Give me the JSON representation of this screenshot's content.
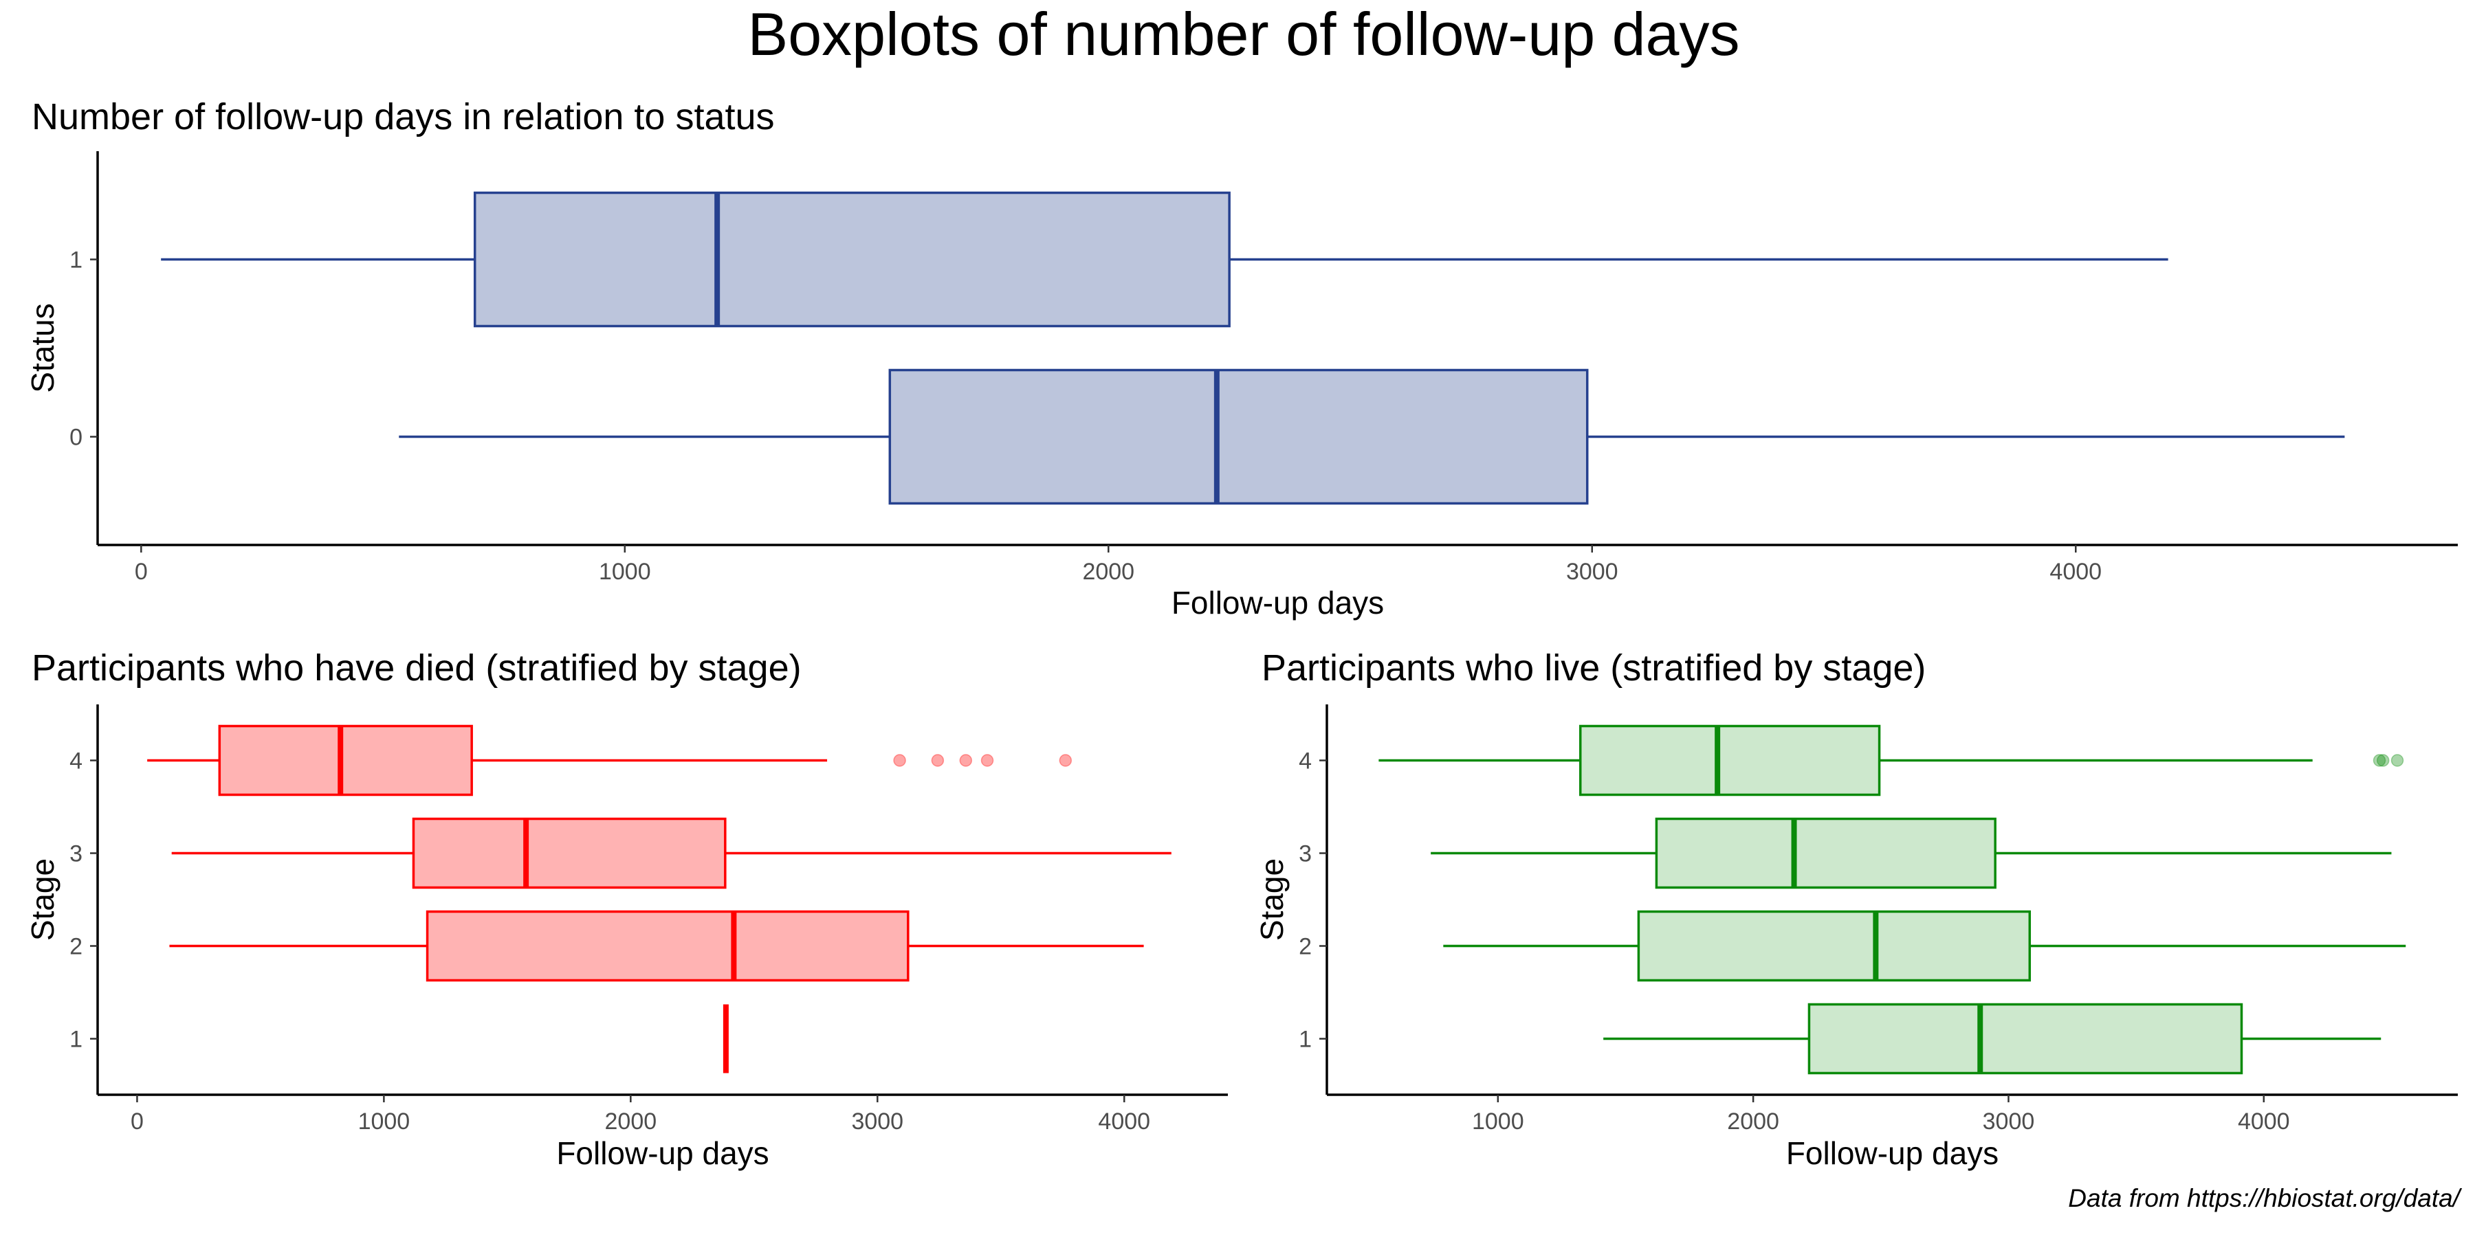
{
  "main_title": "Boxplots of number of follow-up days",
  "caption": "Data from https://hbiostat.org/data/",
  "chart_data": [
    {
      "type": "boxplot",
      "orientation": "horizontal",
      "title": "Number of follow-up days in relation to status",
      "xlabel": "Follow-up days",
      "ylabel": "Status",
      "xlim": [
        -90,
        4790
      ],
      "xticks": [
        0,
        1000,
        2000,
        3000,
        4000
      ],
      "categories": [
        "0",
        "1"
      ],
      "color": "#26418f",
      "fill": "#bcc5dc",
      "boxes": [
        {
          "category": "1",
          "whisker_low": 41,
          "q1": 690,
          "median": 1191,
          "q3": 2250,
          "whisker_high": 4191,
          "outliers": []
        },
        {
          "category": "0",
          "whisker_low": 533,
          "q1": 1548,
          "median": 2224,
          "q3": 2990,
          "whisker_high": 4556,
          "outliers": []
        }
      ]
    },
    {
      "type": "boxplot",
      "orientation": "horizontal",
      "title": "Participants who have died (stratified by stage)",
      "xlabel": "Follow-up days",
      "ylabel": "Stage",
      "xlim": [
        -160,
        4420
      ],
      "xticks": [
        0,
        1000,
        2000,
        3000,
        4000
      ],
      "categories": [
        "1",
        "2",
        "3",
        "4"
      ],
      "color": "#ff0000",
      "fill": "#ffb3b3",
      "boxes": [
        {
          "category": "4",
          "whisker_low": 41,
          "q1": 334,
          "median": 824,
          "q3": 1356,
          "whisker_high": 2796,
          "outliers": [
            3090,
            3244,
            3358,
            3445,
            3762
          ]
        },
        {
          "category": "3",
          "whisker_low": 140,
          "q1": 1120,
          "median": 1576,
          "q3": 2383,
          "whisker_high": 4191,
          "outliers": []
        },
        {
          "category": "2",
          "whisker_low": 131,
          "q1": 1176,
          "median": 2418,
          "q3": 3124,
          "whisker_high": 4079,
          "outliers": []
        },
        {
          "category": "1",
          "whisker_low": 2386,
          "q1": 2386,
          "median": 2386,
          "q3": 2386,
          "whisker_high": 2386,
          "outliers": []
        }
      ]
    },
    {
      "type": "boxplot",
      "orientation": "horizontal",
      "title": "Participants who live (stratified by stage)",
      "xlabel": "Follow-up days",
      "ylabel": "Stage",
      "xlim": [
        330,
        4760
      ],
      "xticks": [
        1000,
        2000,
        3000,
        4000
      ],
      "categories": [
        "1",
        "2",
        "3",
        "4"
      ],
      "color": "#0a8a0a",
      "fill": "#cde8cd",
      "boxes": [
        {
          "category": "4",
          "whisker_low": 533,
          "q1": 1323,
          "median": 1860,
          "q3": 2494,
          "whisker_high": 4191,
          "outliers": [
            4453,
            4467,
            4523
          ]
        },
        {
          "category": "3",
          "whisker_low": 737,
          "q1": 1621,
          "median": 2160,
          "q3": 2948,
          "whisker_high": 4500,
          "outliers": []
        },
        {
          "category": "2",
          "whisker_low": 786,
          "q1": 1551,
          "median": 2480,
          "q3": 3083,
          "whisker_high": 4556,
          "outliers": []
        },
        {
          "category": "1",
          "whisker_low": 1413,
          "q1": 2219,
          "median": 2889,
          "q3": 3913,
          "whisker_high": 4459,
          "outliers": []
        }
      ]
    }
  ]
}
